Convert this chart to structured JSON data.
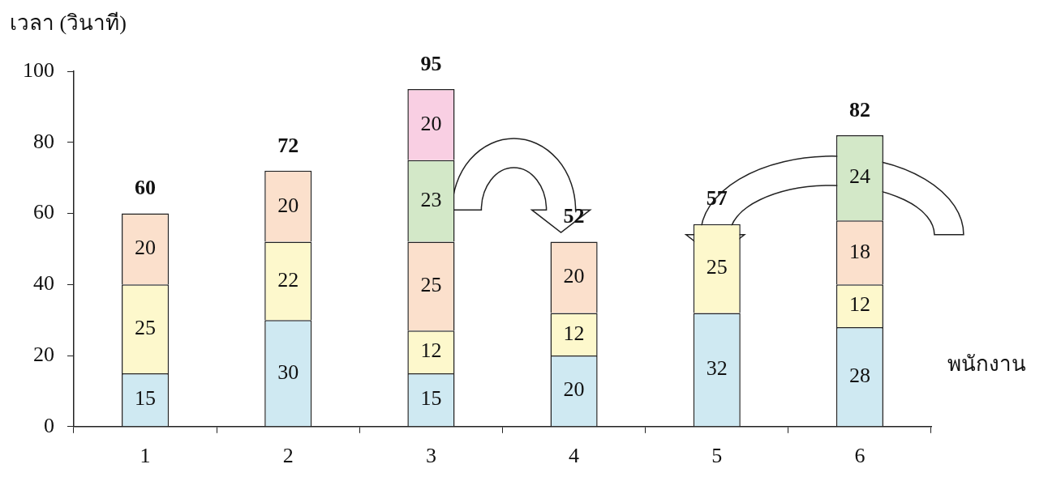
{
  "chart_data": {
    "type": "bar",
    "stacked": true,
    "ylabel": "เวลา (วินาที)",
    "xlabel": "พนักงาน",
    "categories": [
      "1",
      "2",
      "3",
      "4",
      "5",
      "6"
    ],
    "series": [
      {
        "color": "#cfe9f2",
        "values": [
          15,
          30,
          15,
          20,
          32,
          28
        ]
      },
      {
        "color": "#fdf8cc",
        "values": [
          25,
          22,
          12,
          12,
          25,
          12
        ]
      },
      {
        "color": "#fbe0cc",
        "values": [
          20,
          20,
          25,
          20,
          null,
          18
        ]
      },
      {
        "color": "#d3e8c8",
        "values": [
          null,
          null,
          23,
          null,
          null,
          24
        ]
      },
      {
        "color": "#f9cfe3",
        "values": [
          null,
          null,
          20,
          null,
          null,
          null
        ]
      }
    ],
    "ylim": [
      0,
      100
    ],
    "yticks": [
      0,
      20,
      40,
      60,
      80,
      100
    ],
    "grid": false,
    "legend": false,
    "data_labels": true,
    "totals": [
      "60",
      "72",
      "95",
      "52",
      "57",
      "82"
    ]
  }
}
